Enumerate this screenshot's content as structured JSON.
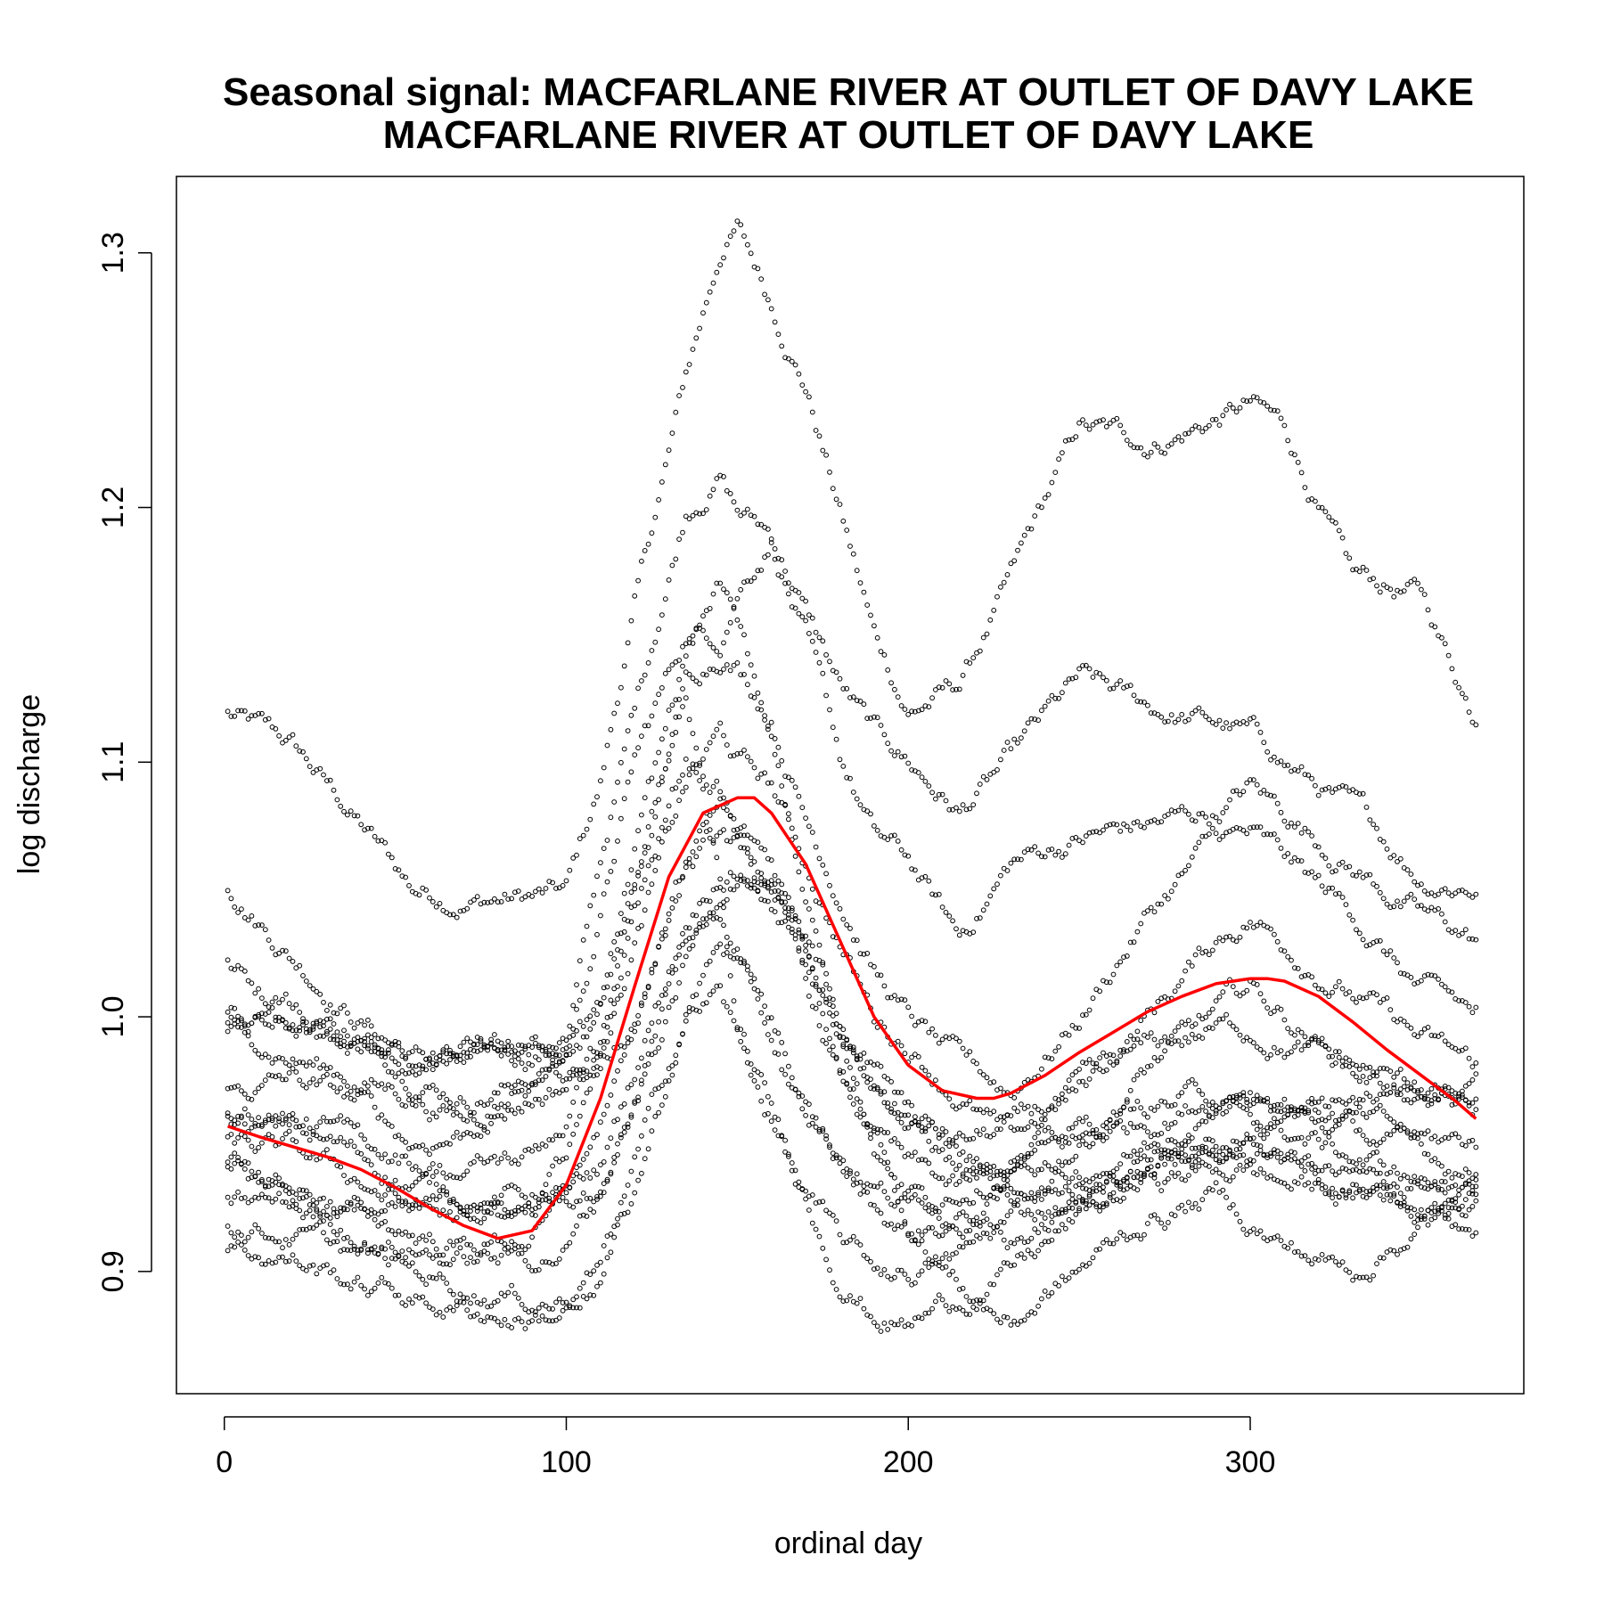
{
  "chart_data": {
    "type": "scatter",
    "title": "Seasonal signal: MACFARLANE RIVER AT OUTLET OF DAVY LAKE",
    "subtitle": "MACFARLANE RIVER AT OUTLET OF DAVY LAKE",
    "xlabel": "ordinal day",
    "ylabel": "log discharge",
    "xlim": [
      -14,
      380
    ],
    "ylim": [
      0.852,
      1.33
    ],
    "x_ticks": [
      0,
      100,
      200,
      300
    ],
    "x_tick_labels": [
      "0",
      "100",
      "200",
      "300"
    ],
    "y_ticks": [
      0.9,
      1.0,
      1.1,
      1.2,
      1.3
    ],
    "y_tick_labels": [
      "0.9",
      "1.0",
      "1.1",
      "1.2",
      "1.3"
    ],
    "grid": false,
    "legend": "none",
    "colors": {
      "points": "#000000",
      "smooth": "#ff0000"
    },
    "series": [
      {
        "kind": "points",
        "marker": "open-circle",
        "description_count": 15,
        "traces": [
          {
            "x": [
              1,
              20,
              40,
              55,
              70,
              90,
              100,
              110,
              120,
              135,
              145,
              150,
              160,
              170,
              180,
              190,
              200,
              215,
              230,
              250,
              270,
              290,
              300,
              310,
              330,
              350,
              365
            ],
            "y": [
              1.119,
              1.105,
              1.075,
              1.05,
              1.047,
              1.047,
              1.048,
              1.09,
              1.16,
              1.25,
              1.3,
              1.31,
              1.28,
              1.25,
              1.2,
              1.15,
              1.12,
              1.13,
              1.17,
              1.23,
              1.225,
              1.235,
              1.24,
              1.23,
              1.17,
              1.165,
              1.12
            ]
          },
          {
            "x": [
              1,
              20,
              40,
              55,
              70,
              90,
              100,
              110,
              120,
              135,
              145,
              150,
              160,
              170,
              180,
              190,
              200,
              215,
              230,
              250,
              270,
              290,
              300,
              310,
              330,
              350,
              365
            ],
            "y": [
              1.052,
              1.025,
              1.0,
              0.985,
              0.98,
              0.985,
              0.99,
              1.06,
              1.12,
              1.2,
              1.215,
              1.2,
              1.19,
              1.16,
              1.13,
              1.11,
              1.1,
              1.08,
              1.1,
              1.13,
              1.12,
              1.115,
              1.11,
              1.1,
              1.08,
              1.055,
              1.053
            ]
          },
          {
            "x": [
              1,
              20,
              40,
              55,
              70,
              90,
              100,
              110,
              120,
              135,
              145,
              150,
              160,
              170,
              180,
              190,
              200,
              215,
              230,
              250,
              270,
              290,
              300,
              310,
              330,
              350,
              365
            ],
            "y": [
              1.02,
              1.0,
              0.99,
              0.98,
              0.97,
              0.975,
              0.985,
              1.04,
              1.1,
              1.15,
              1.15,
              1.17,
              1.19,
              1.15,
              1.1,
              1.07,
              1.06,
              1.03,
              1.06,
              1.07,
              1.075,
              1.08,
              1.09,
              1.08,
              1.06,
              1.04,
              1.03
            ]
          },
          {
            "x": [
              1,
              20,
              40,
              55,
              70,
              90,
              100,
              110,
              120,
              135,
              145,
              150,
              160,
              170,
              180,
              190,
              200,
              215,
              230,
              250,
              270,
              290,
              300,
              310,
              330,
              350,
              365
            ],
            "y": [
              1.0,
              0.995,
              0.99,
              0.985,
              0.99,
              0.99,
              0.985,
              1.0,
              1.05,
              1.13,
              1.145,
              1.14,
              1.12,
              1.08,
              1.05,
              1.02,
              1.0,
              0.98,
              0.97,
              1.0,
              1.04,
              1.07,
              1.07,
              1.06,
              1.04,
              1.01,
              1.0
            ]
          },
          {
            "x": [
              1,
              20,
              40,
              55,
              70,
              90,
              100,
              110,
              120,
              135,
              145,
              150,
              160,
              170,
              180,
              190,
              200,
              215,
              230,
              250,
              270,
              290,
              300,
              310,
              330,
              350,
              365
            ],
            "y": [
              0.995,
              0.985,
              0.975,
              0.97,
              0.96,
              0.97,
              0.975,
              0.99,
              1.03,
              1.09,
              1.11,
              1.1,
              1.09,
              1.06,
              1.03,
              1.0,
              0.99,
              0.97,
              0.95,
              0.97,
              1.0,
              1.03,
              1.04,
              1.03,
              1.01,
              0.99,
              0.98
            ]
          },
          {
            "x": [
              1,
              20,
              40,
              55,
              70,
              90,
              100,
              110,
              120,
              135,
              145,
              150,
              160,
              170,
              180,
              190,
              200,
              215,
              230,
              250,
              270,
              290,
              300,
              310,
              330,
              350,
              365
            ],
            "y": [
              0.97,
              0.975,
              0.965,
              0.95,
              0.955,
              0.975,
              0.98,
              0.98,
              1.0,
              1.06,
              1.08,
              1.07,
              1.06,
              1.03,
              1.0,
              0.98,
              0.96,
              0.94,
              0.93,
              0.95,
              0.98,
              1.0,
              1.01,
              1.0,
              0.98,
              0.97,
              0.96
            ]
          },
          {
            "x": [
              1,
              20,
              40,
              55,
              70,
              90,
              100,
              110,
              120,
              135,
              145,
              150,
              160,
              170,
              180,
              190,
              200,
              215,
              230,
              250,
              270,
              290,
              300,
              310,
              330,
              350,
              365
            ],
            "y": [
              0.96,
              0.955,
              0.945,
              0.935,
              0.93,
              0.93,
              0.945,
              0.975,
              1.04,
              1.1,
              1.09,
              1.07,
              1.04,
              1.02,
              0.99,
              0.97,
              0.96,
              0.95,
              0.955,
              0.97,
              0.985,
              0.995,
              0.995,
              0.99,
              0.98,
              0.97,
              0.965
            ]
          },
          {
            "x": [
              1,
              20,
              40,
              55,
              70,
              90,
              100,
              110,
              120,
              135,
              145,
              150,
              160,
              170,
              180,
              190,
              200,
              215,
              230,
              250,
              270,
              290,
              300,
              310,
              330,
              350,
              365
            ],
            "y": [
              0.95,
              0.945,
              0.935,
              0.925,
              0.92,
              0.92,
              0.93,
              0.96,
              1.0,
              1.06,
              1.07,
              1.065,
              1.05,
              1.01,
              0.975,
              0.955,
              0.94,
              0.93,
              0.94,
              0.95,
              0.96,
              0.97,
              0.975,
              0.97,
              0.96,
              0.95,
              0.95
            ]
          },
          {
            "x": [
              1,
              20,
              40,
              55,
              70,
              90,
              100,
              110,
              120,
              135,
              145,
              150,
              160,
              170,
              180,
              190,
              200,
              215,
              230,
              250,
              270,
              290,
              300,
              310,
              330,
              350,
              365
            ],
            "y": [
              0.945,
              0.935,
              0.925,
              0.92,
              0.925,
              0.925,
              0.93,
              0.94,
              0.98,
              1.04,
              1.06,
              1.06,
              1.055,
              1.03,
              1.0,
              0.98,
              0.96,
              0.945,
              0.93,
              0.935,
              0.95,
              0.96,
              0.96,
              0.955,
              0.945,
              0.935,
              0.93
            ]
          },
          {
            "x": [
              1,
              20,
              40,
              55,
              70,
              90,
              100,
              110,
              120,
              135,
              145,
              150,
              160,
              170,
              180,
              190,
              200,
              215,
              230,
              250,
              270,
              290,
              300,
              310,
              330,
              350,
              365
            ],
            "y": [
              0.94,
              0.93,
              0.92,
              0.915,
              0.91,
              0.915,
              0.925,
              0.93,
              0.96,
              1.02,
              1.05,
              1.06,
              1.05,
              1.02,
              0.98,
              0.95,
              0.93,
              0.92,
              0.91,
              0.925,
              0.94,
              0.945,
              0.95,
              0.945,
              0.935,
              0.925,
              0.92
            ]
          },
          {
            "x": [
              1,
              20,
              40,
              55,
              70,
              90,
              100,
              110,
              120,
              135,
              145,
              150,
              160,
              170,
              180,
              190,
              200,
              215,
              230,
              250,
              270,
              290,
              300,
              310,
              330,
              350,
              365
            ],
            "y": [
              0.93,
              0.925,
              0.915,
              0.91,
              0.905,
              0.905,
              0.91,
              0.93,
              0.97,
              1.03,
              1.04,
              1.03,
              1.0,
              0.97,
              0.95,
              0.935,
              0.925,
              0.935,
              0.945,
              0.955,
              0.965,
              0.97,
              0.965,
              0.96,
              0.955,
              0.945,
              0.94
            ]
          },
          {
            "x": [
              1,
              20,
              40,
              55,
              70,
              90,
              100,
              110,
              120,
              135,
              145,
              150,
              160,
              170,
              180,
              190,
              200,
              215,
              230,
              250,
              270,
              290,
              300,
              310,
              330,
              350,
              365
            ],
            "y": [
              0.92,
              0.915,
              0.905,
              0.9,
              0.895,
              0.89,
              0.89,
              0.9,
              0.93,
              1.0,
              1.03,
              1.02,
              0.99,
              0.96,
              0.94,
              0.925,
              0.915,
              0.92,
              0.93,
              0.94,
              0.95,
              0.955,
              0.95,
              0.945,
              0.93,
              0.925,
              0.92
            ]
          },
          {
            "x": [
              1,
              20,
              40,
              55,
              70,
              90,
              100,
              110,
              120,
              135,
              145,
              150,
              160,
              170,
              180,
              190,
              200,
              215,
              230,
              250,
              270,
              290,
              300,
              310,
              330,
              350,
              365
            ],
            "y": [
              0.91,
              0.905,
              0.895,
              0.89,
              0.885,
              0.882,
              0.885,
              0.9,
              0.94,
              1.0,
              1.01,
              0.99,
              0.96,
              0.93,
              0.91,
              0.9,
              0.9,
              0.905,
              0.92,
              0.93,
              0.94,
              0.95,
              0.955,
              0.96,
              0.965,
              0.97,
              0.975
            ]
          },
          {
            "x": [
              1,
              20,
              40,
              55,
              70,
              90,
              100,
              110,
              120,
              135,
              145,
              150,
              160,
              170,
              180,
              190,
              200,
              215,
              230,
              250,
              270,
              290,
              300,
              310,
              330,
              350,
              365
            ],
            "y": [
              1.0,
              1.0,
              0.99,
              0.985,
              0.99,
              0.99,
              0.985,
              1.0,
              1.06,
              1.14,
              1.17,
              1.15,
              1.11,
              1.05,
              0.99,
              0.95,
              0.92,
              0.895,
              0.88,
              0.9,
              0.92,
              0.93,
              0.92,
              0.91,
              0.9,
              0.92,
              0.93
            ]
          },
          {
            "x": [
              1,
              20,
              40,
              55,
              70,
              90,
              100,
              110,
              120,
              135,
              145,
              150,
              160,
              170,
              180,
              190,
              200,
              215,
              230,
              250,
              270,
              290,
              300,
              310,
              330,
              350,
              365
            ],
            "y": [
              0.965,
              0.96,
              0.95,
              0.945,
              0.94,
              0.945,
              0.96,
              0.99,
              1.05,
              1.12,
              1.05,
              0.99,
              0.96,
              0.93,
              0.9,
              0.885,
              0.88,
              0.89,
              0.9,
              0.92,
              0.935,
              0.94,
              0.94,
              0.935,
              0.93,
              0.935,
              0.94
            ]
          }
        ]
      },
      {
        "kind": "smooth",
        "x": [
          1,
          10,
          20,
          30,
          40,
          50,
          60,
          70,
          80,
          90,
          100,
          110,
          120,
          130,
          140,
          150,
          155,
          160,
          170,
          180,
          190,
          200,
          210,
          220,
          225,
          230,
          240,
          250,
          260,
          270,
          280,
          290,
          300,
          305,
          310,
          320,
          330,
          340,
          350,
          360,
          366
        ],
        "y": [
          0.957,
          0.953,
          0.949,
          0.945,
          0.94,
          0.933,
          0.925,
          0.918,
          0.913,
          0.916,
          0.934,
          0.968,
          1.012,
          1.055,
          1.08,
          1.086,
          1.086,
          1.08,
          1.06,
          1.03,
          1.0,
          0.981,
          0.971,
          0.968,
          0.968,
          0.97,
          0.977,
          0.986,
          0.994,
          1.002,
          1.008,
          1.013,
          1.015,
          1.015,
          1.014,
          1.008,
          0.998,
          0.987,
          0.977,
          0.967,
          0.96
        ]
      }
    ]
  }
}
